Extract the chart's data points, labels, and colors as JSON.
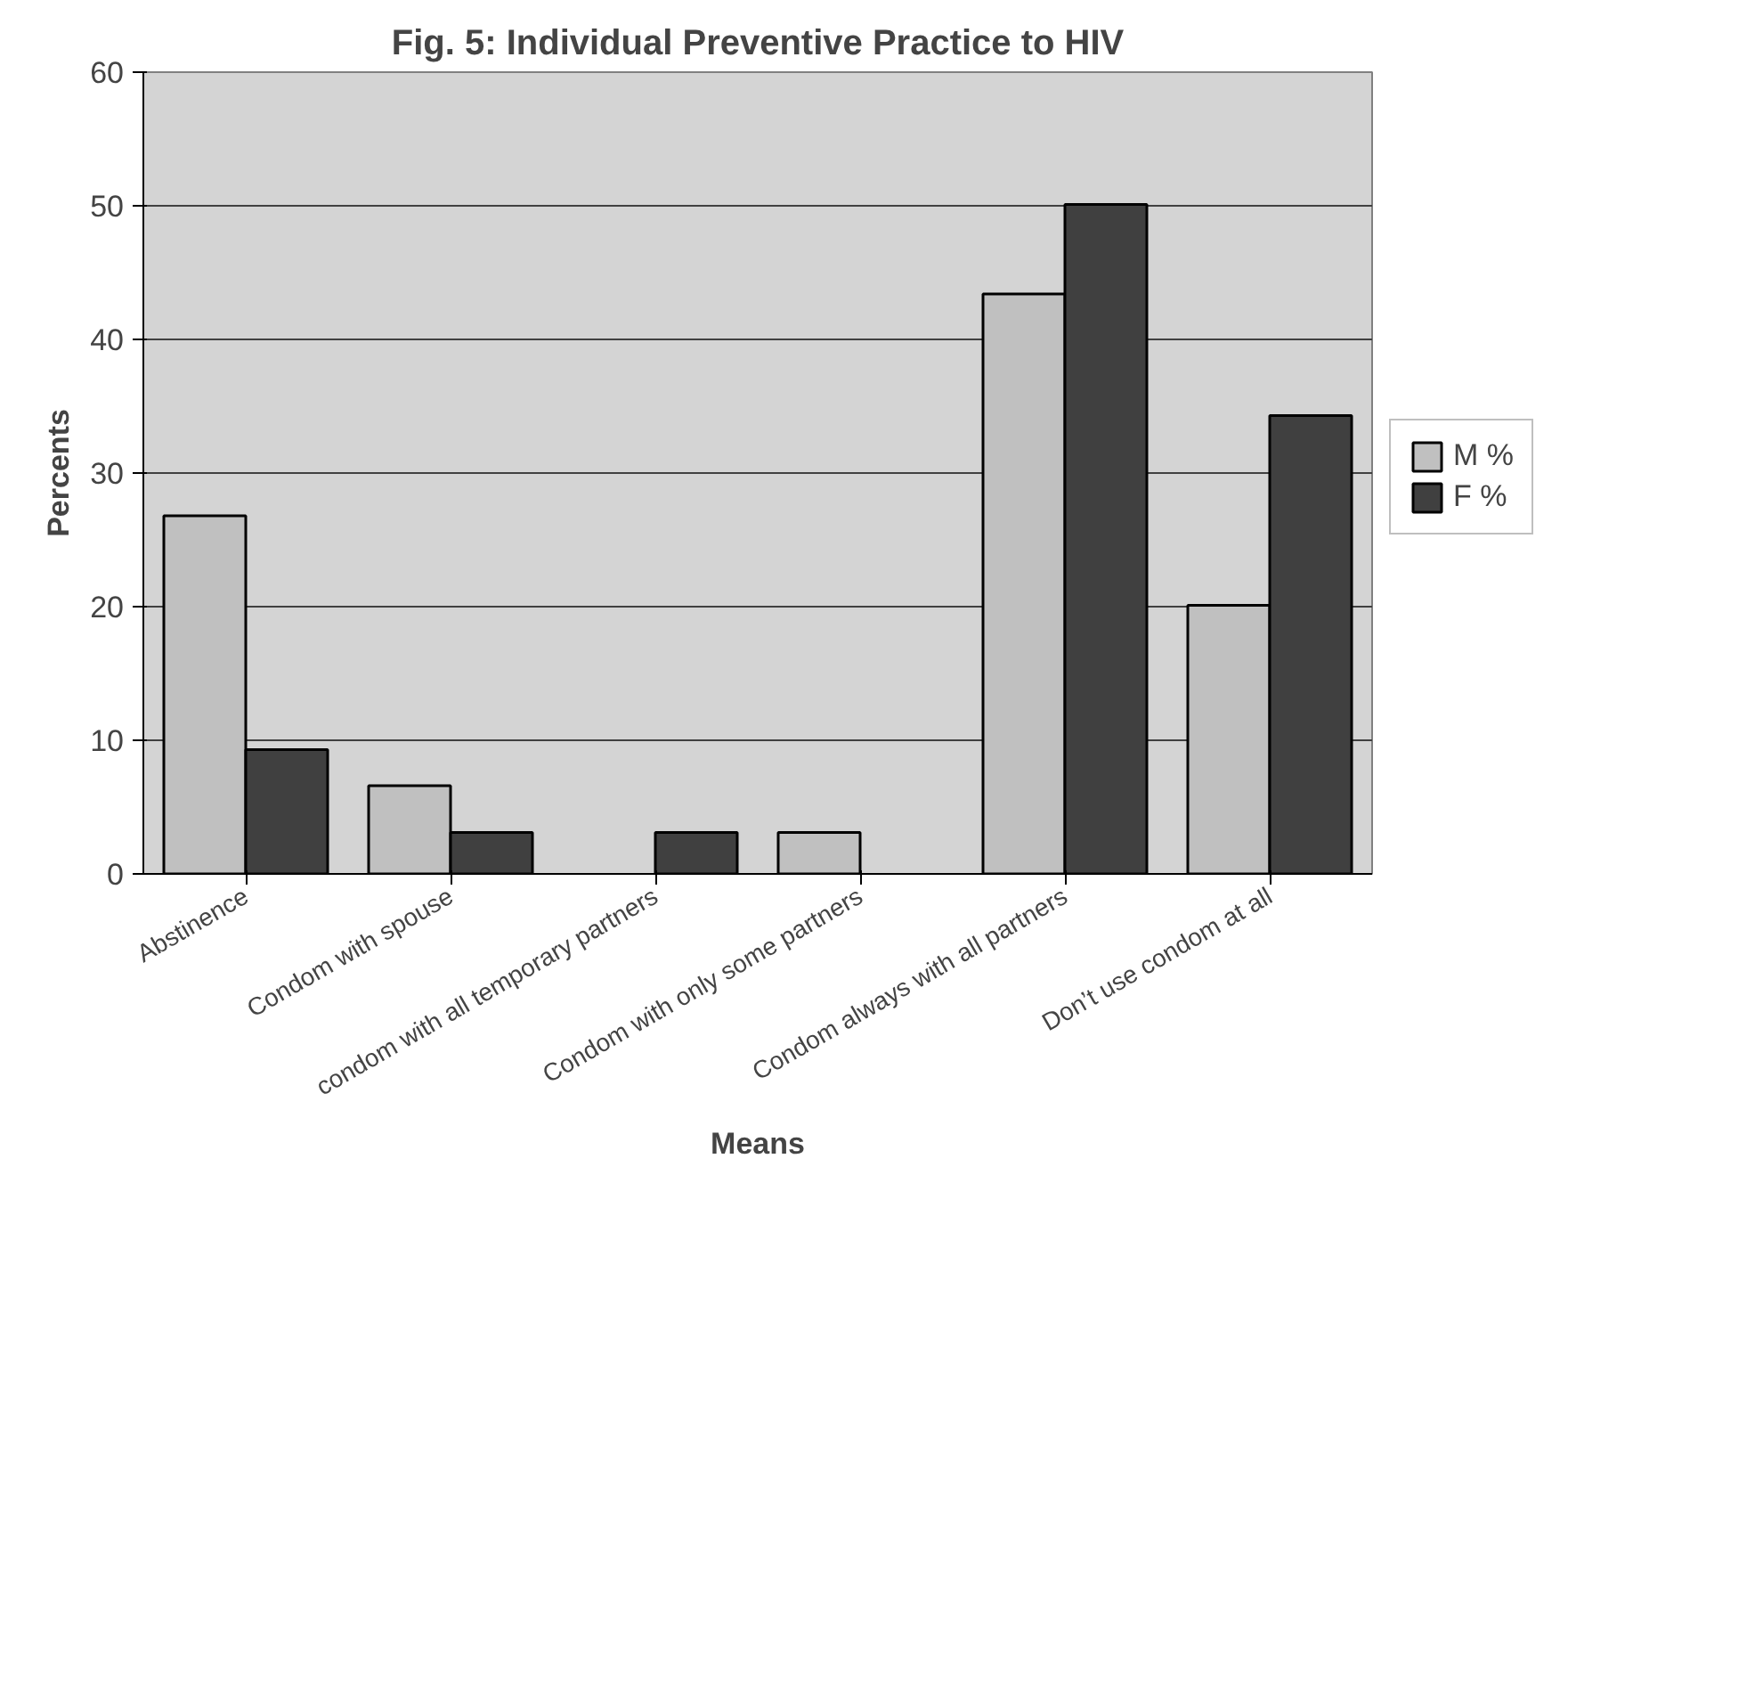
{
  "chart_data": {
    "type": "bar",
    "title": "Fig. 5: Individual Preventive Practice to HIV",
    "xlabel": "Means",
    "ylabel": "Percents",
    "categories": [
      "Abstinence",
      "Condom with spouse",
      "condom with all temporary partners",
      "Condom with only some partners",
      "Condom always with all partners",
      "Don’t use condom at all"
    ],
    "series": [
      {
        "name": "M %",
        "color": "#c0c0c0",
        "values": [
          26.8,
          6.6,
          null,
          3.1,
          43.4,
          20.1
        ]
      },
      {
        "name": "F %",
        "color": "#404040",
        "values": [
          9.3,
          3.1,
          3.1,
          null,
          50.1,
          34.3
        ]
      }
    ],
    "ylim": [
      0,
      60
    ],
    "yticks": [
      0,
      10,
      20,
      30,
      40,
      50,
      60
    ],
    "grid": "y",
    "legend": "right"
  }
}
